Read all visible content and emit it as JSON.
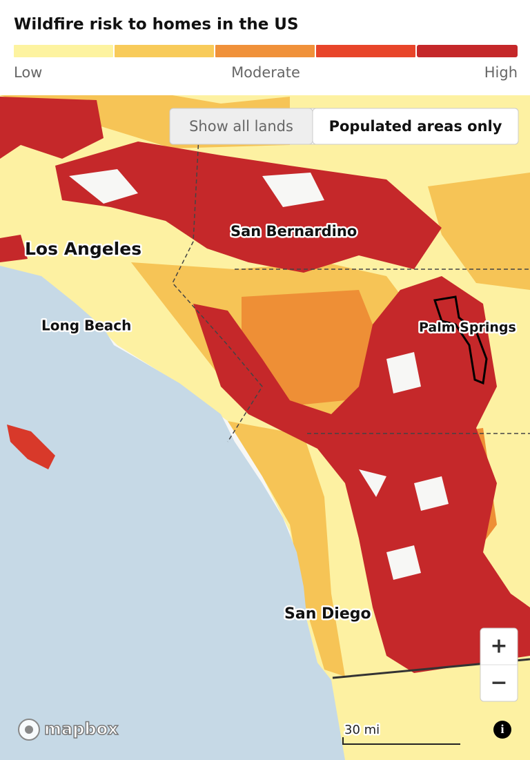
{
  "header": {
    "title": "Wildfire risk to homes in the US",
    "legend": {
      "colors": [
        "#fdf3a0",
        "#f8cb5a",
        "#f0913a",
        "#e8452a",
        "#c5282a"
      ],
      "labels": [
        "Low",
        "Moderate",
        "High"
      ]
    }
  },
  "toggle": {
    "options": [
      "Show all lands",
      "Populated areas only"
    ],
    "selected": 1
  },
  "map": {
    "places": [
      {
        "label": "San Bernardino"
      },
      {
        "label": "Los Angeles"
      },
      {
        "label": "Long Beach"
      },
      {
        "label": "Palm Springs"
      },
      {
        "label": "San Diego"
      }
    ],
    "controls": {
      "zoom_in": "+",
      "zoom_out": "−"
    },
    "scale": "30 mi",
    "attribution": "mapbox",
    "info": "i"
  }
}
